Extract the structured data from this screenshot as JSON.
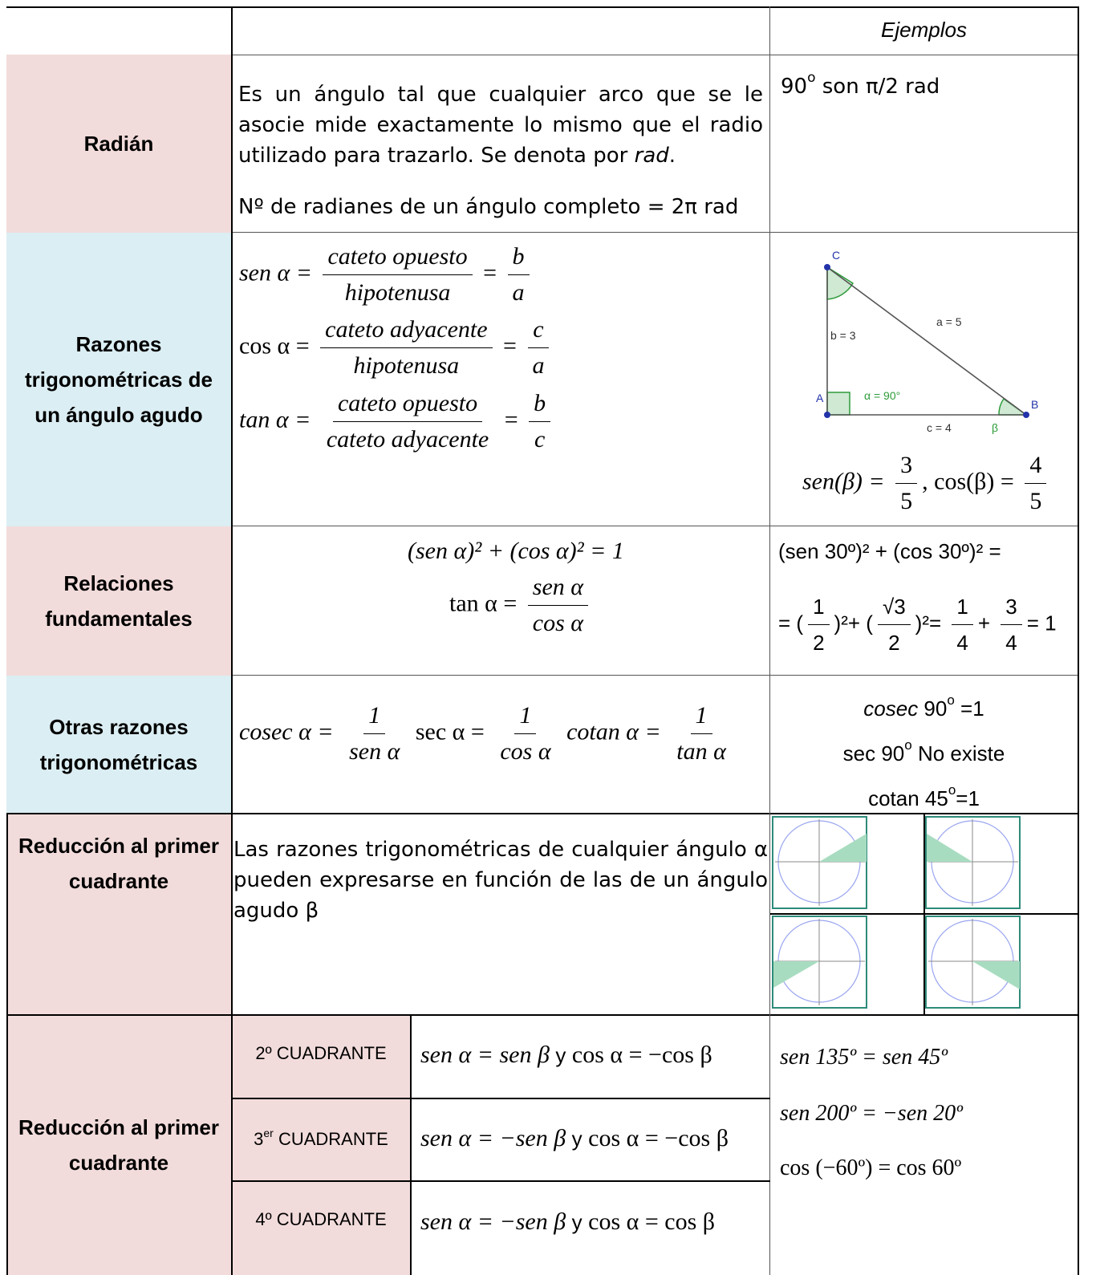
{
  "header": {
    "col3": "Ejemplos"
  },
  "rows": {
    "radian": {
      "title": "Radián",
      "desc_start": "Es un ángulo tal que cualquier arco que se le asocie mide exactamente lo mismo que el radio utilizado para trazarlo. Se denota por ",
      "desc_rad": "rad",
      "desc_end": ".",
      "desc2": "Nº de radianes de un ángulo completo = 2π rad",
      "example": "90",
      "example_deg": "o",
      "example_rest": " son π/2 rad"
    },
    "razones": {
      "title": "Razones trigonométricas de un ángulo agudo",
      "eq1": {
        "lhs": "sen α =",
        "num": "cateto    opuesto",
        "den": "hipotenusa",
        "eqs": "=",
        "num2": "b",
        "den2": "a"
      },
      "eq2": {
        "lhs": "cos α  =",
        "num": "cateto    adyacente",
        "den": "hipotenusa",
        "eqs": "=",
        "num2": "c",
        "den2": "a"
      },
      "eq3": {
        "lhs": "tan α  =",
        "num": "cateto    opuesto",
        "den": "cateto    adyacente",
        "eqs": "=",
        "num2": "b",
        "den2": "c"
      },
      "triangle": {
        "C": "C",
        "A": "A",
        "B": "B",
        "a": "a = 5",
        "b": "b = 3",
        "c": "c = 4",
        "alpha": "α = 90°",
        "beta": "β"
      },
      "example": {
        "sen": "sen(β) =",
        "n1": "3",
        "d1": "5",
        "sep": ",",
        "cos": "cos(β) =",
        "n2": "4",
        "d2": "5"
      }
    },
    "relaciones": {
      "title": "Relaciones fundamentales",
      "eq1": "(sen α)² + (cos α)² = 1",
      "eq2_lhs": "tan α =",
      "eq2_num": "sen α",
      "eq2_den": "cos α",
      "ex1": "(sen 30º)² + (cos 30º)² =",
      "ex2_pre": "=",
      "ex2_a_num": "1",
      "ex2_a_den": "2",
      "ex2_b_num": "√3",
      "ex2_b_den": "2",
      "ex2_c_num": "1",
      "ex2_c_den": "4",
      "ex2_d_num": "3",
      "ex2_d_den": "4",
      "ex2_end": "= 1"
    },
    "otras": {
      "title": "Otras razones trigonométricas",
      "cosec_lhs": "cosec α =",
      "cosec_den": "sen α",
      "sec_lhs": "sec α =",
      "sec_den": "cos α",
      "cotan_lhs": "cotan α =",
      "cotan_den": "tan α",
      "one": "1",
      "ex1_a": "cosec",
      "ex1_b": " 90",
      "ex1_c": "o",
      "ex1_d": " =1",
      "ex2_a": "sec 90",
      "ex2_b": "o",
      "ex2_c": " No existe",
      "ex3_a": "cotan 45",
      "ex3_b": "o",
      "ex3_c": "=1"
    },
    "reduccion1": {
      "title": "Reducción al primer cuadrante",
      "desc": "Las razones trigonométricas de cualquier ángulo α pueden expresarse en función de las de un ángulo agudo β"
    },
    "reduccion2": {
      "title": "Reducción al primer cuadrante",
      "q2": "2º CUADRANTE",
      "q3_a": "3",
      "q3_b": "er",
      "q3_c": " CUADRANTE",
      "q4": "4º CUADRANTE",
      "f2_a": "sen α = sen β",
      "f2_y": "y",
      "f2_b": "cos α = −cos β",
      "f3_a": "sen α = −sen β",
      "f3_y": "y",
      "f3_b": "cos α = −cos β",
      "f4_a": "sen α = −sen β",
      "f4_y": "y",
      "f4_b": "cos α = cos β",
      "ex1": "sen 135º = sen 45º",
      "ex2": "sen 200º = −sen 20º",
      "ex3": "cos (−60º) = cos 60º"
    }
  },
  "colors": {
    "pink": "#f2dcdb",
    "blue": "#dbeef3",
    "green": "#2e8b57",
    "fill": "#a8dcc0"
  }
}
